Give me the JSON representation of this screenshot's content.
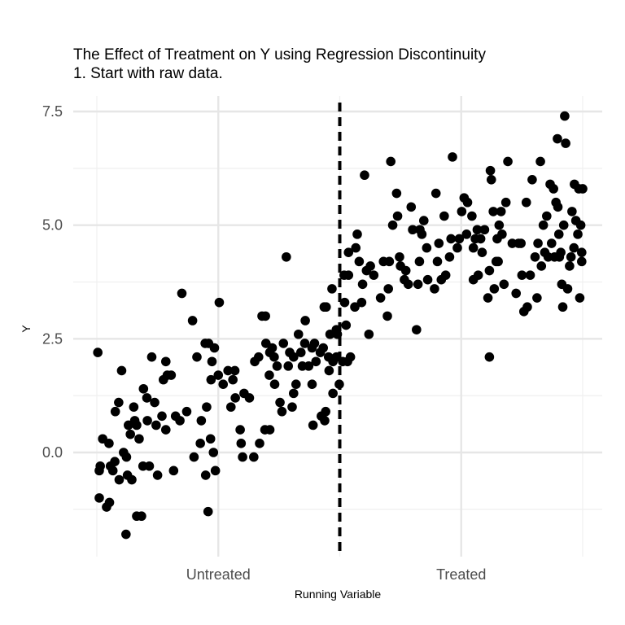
{
  "chart_data": {
    "type": "scatter",
    "title": "The Effect of Treatment on Y using Regression Discontinuity",
    "subtitle": "1. Start with raw data.",
    "xlabel": "Running Variable",
    "ylabel": "Y",
    "xlim": [
      0,
      100
    ],
    "ylim": [
      -2.3,
      7.8
    ],
    "x_ticks": [
      {
        "value": 25,
        "label": "Untreated"
      },
      {
        "value": 75,
        "label": "Treated"
      }
    ],
    "y_ticks": [
      {
        "value": 0,
        "label": "0.0"
      },
      {
        "value": 2.5,
        "label": "2.5"
      },
      {
        "value": 5,
        "label": "5.0"
      },
      {
        "value": 7.5,
        "label": "7.5"
      }
    ],
    "cutoff": 50,
    "cutoff_style": "dashed",
    "grid": true,
    "point_color": "#000000",
    "points": [
      [
        0.2,
        2.2
      ],
      [
        0.5,
        -0.4
      ],
      [
        0.7,
        -0.3
      ],
      [
        1.2,
        0.3
      ],
      [
        0.5,
        -1
      ],
      [
        2,
        -1.2
      ],
      [
        2.5,
        0.2
      ],
      [
        2.8,
        -0.3
      ],
      [
        2.6,
        -1.1
      ],
      [
        3.3,
        -0.4
      ],
      [
        3.8,
        0.9
      ],
      [
        3.7,
        -0.2
      ],
      [
        4.5,
        1.1
      ],
      [
        4.6,
        -0.6
      ],
      [
        5.1,
        1.8
      ],
      [
        5.5,
        0
      ],
      [
        6,
        -1.8
      ],
      [
        6.3,
        -0.5
      ],
      [
        6.5,
        0.6
      ],
      [
        6.1,
        -0.1
      ],
      [
        6.9,
        0.4
      ],
      [
        7.2,
        -0.6
      ],
      [
        7.6,
        1
      ],
      [
        7.8,
        0.7
      ],
      [
        8.2,
        -1.4
      ],
      [
        8.2,
        0.6
      ],
      [
        8.7,
        0.3
      ],
      [
        9.2,
        -1.4
      ],
      [
        9.5,
        -0.3
      ],
      [
        9.6,
        1.4
      ],
      [
        10.3,
        1.2
      ],
      [
        10.4,
        0.7
      ],
      [
        10.8,
        -0.3
      ],
      [
        11.3,
        2.1
      ],
      [
        11.9,
        1.1
      ],
      [
        12.2,
        0.6
      ],
      [
        12.5,
        -0.5
      ],
      [
        13.7,
        1.6
      ],
      [
        14.2,
        0.5
      ],
      [
        13.4,
        0.8
      ],
      [
        14.2,
        2
      ],
      [
        14.5,
        1.7
      ],
      [
        15.3,
        1.7
      ],
      [
        16.2,
        0.8
      ],
      [
        15.8,
        -0.4
      ],
      [
        17.1,
        0.7
      ],
      [
        17.5,
        3.5
      ],
      [
        18.5,
        0.9
      ],
      [
        19.7,
        2.9
      ],
      [
        20,
        -0.1
      ],
      [
        20.6,
        2.1
      ],
      [
        21.3,
        0.2
      ],
      [
        21.5,
        0.7
      ],
      [
        22.3,
        2.4
      ],
      [
        22.6,
        1
      ],
      [
        22.4,
        -0.5
      ],
      [
        23,
        2.4
      ],
      [
        23.4,
        0.3
      ],
      [
        23.7,
        2
      ],
      [
        23.5,
        1.6
      ],
      [
        24.2,
        2.3
      ],
      [
        24.4,
        -0.4
      ],
      [
        25.2,
        3.3
      ],
      [
        22.9,
        -1.3
      ],
      [
        24,
        0
      ],
      [
        25,
        1.7
      ],
      [
        26,
        1.5
      ],
      [
        27,
        1.8
      ],
      [
        27.6,
        1
      ],
      [
        28,
        1.6
      ],
      [
        28.4,
        1.8
      ],
      [
        28.5,
        1.2
      ],
      [
        29.5,
        0.5
      ],
      [
        29.7,
        0.2
      ],
      [
        30,
        -0.1
      ],
      [
        30.3,
        1.3
      ],
      [
        31.4,
        1.2
      ],
      [
        32.3,
        -0.1
      ],
      [
        32.5,
        2
      ],
      [
        33.3,
        2.1
      ],
      [
        33.5,
        0.2
      ],
      [
        34,
        3
      ],
      [
        34.6,
        0.5
      ],
      [
        34.7,
        3
      ],
      [
        34.8,
        2.4
      ],
      [
        35.5,
        1.7
      ],
      [
        35.6,
        2.2
      ],
      [
        35.6,
        0.5
      ],
      [
        36.1,
        2.3
      ],
      [
        36.5,
        2.1
      ],
      [
        36.6,
        1.5
      ],
      [
        37.1,
        1.9
      ],
      [
        37.7,
        1.1
      ],
      [
        38.1,
        0.9
      ],
      [
        38.4,
        2.4
      ],
      [
        39,
        4.3
      ],
      [
        39.4,
        1.9
      ],
      [
        39.7,
        2.2
      ],
      [
        40.2,
        1
      ],
      [
        40.5,
        1.3
      ],
      [
        40.5,
        2.1
      ],
      [
        41,
        1.5
      ],
      [
        41.5,
        2.6
      ],
      [
        42,
        2.2
      ],
      [
        42.3,
        1.9
      ],
      [
        42.9,
        2.9
      ],
      [
        42.8,
        2.4
      ],
      [
        43.6,
        1.9
      ],
      [
        44.3,
        2.3
      ],
      [
        44.3,
        1.5
      ],
      [
        44.5,
        0.6
      ],
      [
        44.8,
        2.4
      ],
      [
        45.1,
        2
      ],
      [
        46.2,
        0.8
      ],
      [
        46,
        2.2
      ],
      [
        46.6,
        2.3
      ],
      [
        46.9,
        0.7
      ],
      [
        47.1,
        0.9
      ],
      [
        47.7,
        2.1
      ],
      [
        47.8,
        1.8
      ],
      [
        48,
        2.6
      ],
      [
        48.4,
        3.6
      ],
      [
        48.6,
        2
      ],
      [
        48.6,
        1.3
      ],
      [
        49.3,
        2.1
      ],
      [
        49.5,
        2.6
      ],
      [
        49.3,
        2.7
      ],
      [
        49.9,
        1.5
      ],
      [
        46.8,
        3.2
      ],
      [
        47.2,
        3.2
      ],
      [
        50.9,
        3.9
      ],
      [
        51.3,
        2.8
      ],
      [
        51,
        3.3
      ],
      [
        51.6,
        2
      ],
      [
        51.8,
        4.4
      ],
      [
        51.8,
        3.9
      ],
      [
        52.2,
        2.1
      ],
      [
        50.6,
        2
      ],
      [
        53.1,
        3.2
      ],
      [
        53.3,
        4.5
      ],
      [
        53.6,
        4.8
      ],
      [
        54,
        4.2
      ],
      [
        54.5,
        3.3
      ],
      [
        54.7,
        3.7
      ],
      [
        55.1,
        6.1
      ],
      [
        55.5,
        4
      ],
      [
        56,
        2.6
      ],
      [
        56.3,
        4.1
      ],
      [
        57,
        3.9
      ],
      [
        58.4,
        3.4
      ],
      [
        59,
        4.2
      ],
      [
        59.8,
        3
      ],
      [
        60,
        3.6
      ],
      [
        60.2,
        4.2
      ],
      [
        60.5,
        6.4
      ],
      [
        60.9,
        5
      ],
      [
        61.7,
        5.7
      ],
      [
        61.9,
        5.2
      ],
      [
        62.3,
        4.3
      ],
      [
        62.5,
        4.1
      ],
      [
        63.3,
        3.8
      ],
      [
        63.6,
        4
      ],
      [
        64.1,
        3.7
      ],
      [
        64.7,
        5.4
      ],
      [
        65,
        4.9
      ],
      [
        65.8,
        2.7
      ],
      [
        66.1,
        3.7
      ],
      [
        66.4,
        4.2
      ],
      [
        66.5,
        4.9
      ],
      [
        66.9,
        4.8
      ],
      [
        67.3,
        5.1
      ],
      [
        67.9,
        4.5
      ],
      [
        68.1,
        3.8
      ],
      [
        69.5,
        3.6
      ],
      [
        69.8,
        5.7
      ],
      [
        70.1,
        4.2
      ],
      [
        70.4,
        4.6
      ],
      [
        70.9,
        3.8
      ],
      [
        71.5,
        5.2
      ],
      [
        71.8,
        3.9
      ],
      [
        72.6,
        4.3
      ],
      [
        72.9,
        4.7
      ],
      [
        73.2,
        6.5
      ],
      [
        74.2,
        4.5
      ],
      [
        74.6,
        4.7
      ],
      [
        75.1,
        5.3
      ],
      [
        75.6,
        5.6
      ],
      [
        76.1,
        4.8
      ],
      [
        76.3,
        5.5
      ],
      [
        77.2,
        5.2
      ],
      [
        77.5,
        4.5
      ],
      [
        77.5,
        3.8
      ],
      [
        77.9,
        4.7
      ],
      [
        78.3,
        4.9
      ],
      [
        78.5,
        3.9
      ],
      [
        79,
        4.7
      ],
      [
        79.3,
        4.4
      ],
      [
        79.8,
        4.9
      ],
      [
        80.5,
        3.4
      ],
      [
        80.8,
        4
      ],
      [
        80.8,
        2.1
      ],
      [
        81,
        6.2
      ],
      [
        81.2,
        6
      ],
      [
        81.6,
        5.3
      ],
      [
        81.8,
        3.6
      ],
      [
        82.2,
        4.2
      ],
      [
        82.4,
        4.7
      ],
      [
        82.6,
        4.2
      ],
      [
        82.8,
        5
      ],
      [
        83.2,
        5.3
      ],
      [
        83.4,
        4.8
      ],
      [
        83.8,
        3.7
      ],
      [
        84.2,
        5.5
      ],
      [
        84.6,
        6.4
      ],
      [
        85.5,
        4.6
      ],
      [
        86.3,
        3.5
      ],
      [
        86.8,
        4.6
      ],
      [
        87.3,
        4.6
      ],
      [
        87.5,
        3.9
      ],
      [
        87.9,
        3.1
      ],
      [
        88.4,
        5.5
      ],
      [
        88.6,
        3.2
      ],
      [
        89.2,
        3.9
      ],
      [
        89.6,
        6
      ],
      [
        90.2,
        4.3
      ],
      [
        90.6,
        3.4
      ],
      [
        90.8,
        4.6
      ],
      [
        91.3,
        6.4
      ],
      [
        91.5,
        4.1
      ],
      [
        91.9,
        5
      ],
      [
        92.2,
        4.4
      ],
      [
        92.6,
        5.2
      ],
      [
        92.9,
        4.3
      ],
      [
        93.3,
        5.9
      ],
      [
        93.6,
        4.6
      ],
      [
        94,
        5.8
      ],
      [
        94.2,
        4.3
      ],
      [
        94.5,
        5.5
      ],
      [
        94.8,
        6.9
      ],
      [
        94.9,
        5.4
      ],
      [
        95.1,
        4.8
      ],
      [
        95.2,
        4.3
      ],
      [
        95.5,
        4.4
      ],
      [
        95.7,
        3.7
      ],
      [
        95.9,
        3.2
      ],
      [
        96.1,
        5
      ],
      [
        96.3,
        7.4
      ],
      [
        96.5,
        6.8
      ],
      [
        96.9,
        3.6
      ],
      [
        97.3,
        4.1
      ],
      [
        97.6,
        4.3
      ],
      [
        97.8,
        5.3
      ],
      [
        98.2,
        4.5
      ],
      [
        98.3,
        5.9
      ],
      [
        98.6,
        5.1
      ],
      [
        99,
        4.8
      ],
      [
        99.2,
        5.8
      ],
      [
        99.6,
        5
      ],
      [
        99.8,
        4.4
      ],
      [
        100,
        5.8
      ],
      [
        99.4,
        3.4
      ],
      [
        99.8,
        4.2
      ]
    ]
  }
}
